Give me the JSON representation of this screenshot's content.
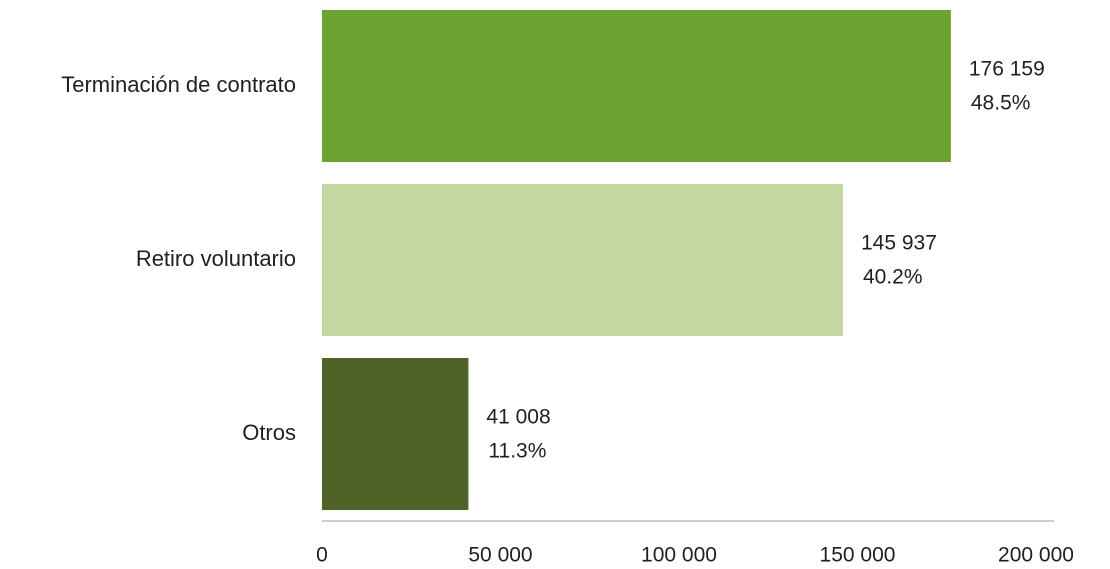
{
  "chart_data": {
    "type": "bar",
    "orientation": "horizontal",
    "categories": [
      "Terminación de contrato",
      "Retiro voluntario",
      "Otros"
    ],
    "values": [
      176159,
      145937,
      41008
    ],
    "value_labels": [
      "176 159",
      "145 937",
      "41 008"
    ],
    "percent_labels": [
      "48.5%",
      "40.2%",
      "11.3%"
    ],
    "colors": [
      "#6aa332",
      "#c5d7a0",
      "#4f6228"
    ],
    "xlim": [
      0,
      200000
    ],
    "xticks": [
      0,
      50000,
      100000,
      150000,
      200000
    ],
    "xtick_labels": [
      "0",
      "50 000",
      "100 000",
      "150 000",
      "200 000"
    ],
    "axis_color": "#bfbfbf",
    "grid": false,
    "legend": "none"
  }
}
